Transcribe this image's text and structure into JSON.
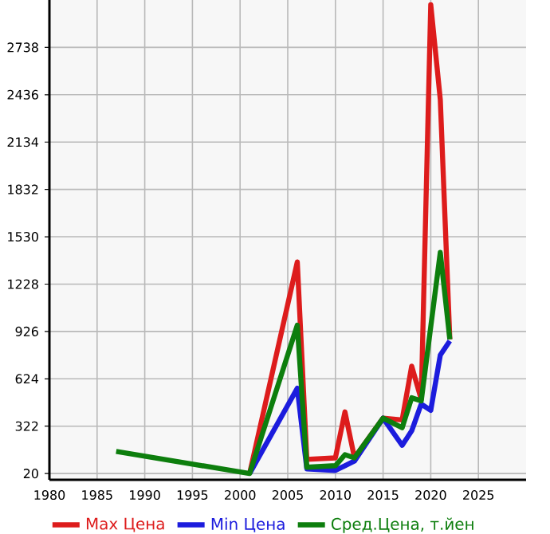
{
  "chart_data": {
    "type": "line",
    "xlim": [
      1980,
      2030
    ],
    "ylim": [
      -20,
      3040
    ],
    "xticks": [
      1980,
      1985,
      1990,
      1995,
      2000,
      2005,
      2010,
      2015,
      2020,
      2025
    ],
    "yticks": [
      20,
      322,
      624,
      926,
      1228,
      1530,
      1832,
      2134,
      2436,
      2738
    ],
    "grid": true,
    "legend": "bottom",
    "line_style": "solid",
    "marker": "none",
    "series": [
      {
        "name": "Max Цена",
        "color": "#dd1c1c",
        "x": [
          2001,
          2006,
          2007,
          2010,
          2011,
          2012,
          2015,
          2017,
          2018,
          2019,
          2020,
          2021,
          2022
        ],
        "values": [
          20,
          1369,
          110,
          120,
          413,
          120,
          373,
          362,
          705,
          493,
          3010,
          2406,
          876
        ]
      },
      {
        "name": "Min Цена",
        "color": "#1c1cdd",
        "x": [
          2001,
          2006,
          2007,
          2010,
          2011,
          2012,
          2015,
          2017,
          2018,
          2019,
          2020,
          2021,
          2022
        ],
        "values": [
          20,
          564,
          50,
          40,
          70,
          100,
          373,
          200,
          292,
          463,
          423,
          775,
          866
        ]
      },
      {
        "name": "Сред.Цена, т.йен",
        "color": "#0d7e0d",
        "x": [
          1987,
          2001,
          2006,
          2007,
          2010,
          2011,
          2012,
          2015,
          2017,
          2018,
          2019,
          2021,
          2022
        ],
        "values": [
          161,
          20,
          966,
          60,
          70,
          140,
          120,
          373,
          312,
          503,
          483,
          1430,
          876
        ]
      }
    ]
  }
}
